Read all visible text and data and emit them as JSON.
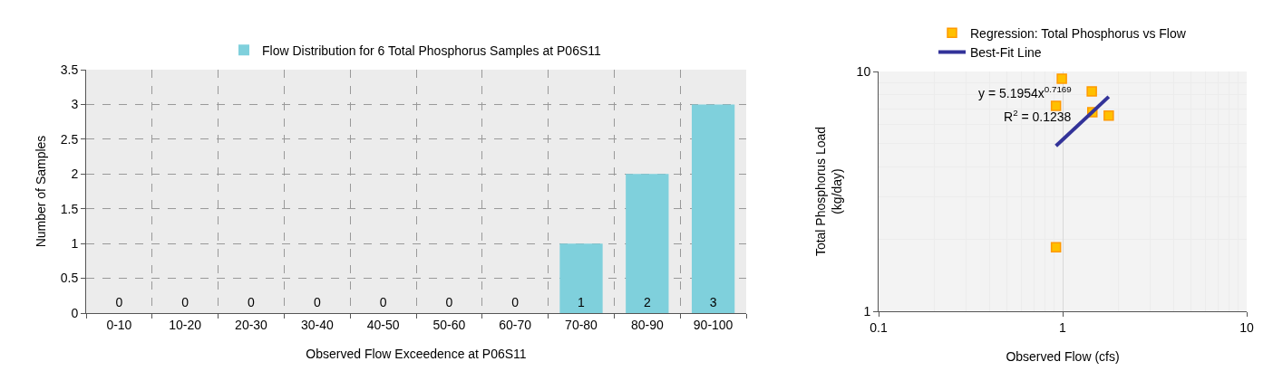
{
  "chart_data": [
    {
      "type": "bar",
      "categories": [
        "0-10",
        "10-20",
        "20-30",
        "30-40",
        "40-50",
        "50-60",
        "60-70",
        "70-80",
        "80-90",
        "90-100"
      ],
      "series": [
        {
          "name": "Flow Distribution for 6 Total Phosphorus Samples at P06S11",
          "color": "#7fd0dc",
          "values": [
            0,
            0,
            0,
            0,
            0,
            0,
            0,
            1,
            2,
            3
          ]
        }
      ],
      "xlabel": "Observed Flow Exceedence at P06S11",
      "ylabel": "Number of Samples",
      "ylim": [
        0,
        3.5
      ],
      "yticks": [
        0,
        0.5,
        1,
        1.5,
        2,
        2.5,
        3,
        3.5
      ],
      "grid": true,
      "legend": "top",
      "data_labels": true
    },
    {
      "type": "scatter",
      "log": "xy",
      "xlabel": "Observed Flow (cfs)",
      "ylabel": "Total Phosphorus Load\n(kg/day)",
      "xlim": [
        0.1,
        10
      ],
      "xticks": [
        0.1,
        1,
        10
      ],
      "ylim": [
        1,
        10
      ],
      "yticks": [
        1,
        10
      ],
      "grid": true,
      "legend": "top",
      "series": [
        {
          "name": "Regression: Total Phosphorus vs Flow",
          "color": "#ffc000",
          "marker": "square",
          "x": [
            0.99,
            1.44,
            0.92,
            1.45,
            1.78,
            0.92
          ],
          "values": [
            9.33,
            8.26,
            7.19,
            6.76,
            6.54,
            1.85
          ]
        },
        {
          "name": "Best-Fit Line",
          "type": "line",
          "color": "#333399",
          "marker": "none",
          "line_style": "solid",
          "x": [
            0.92,
            1.78
          ],
          "values": [
            4.89,
            7.85
          ]
        }
      ],
      "annotations": [
        "y = 5.1954x$^{0.7169}$",
        "R$^{2}$ = 0.1238"
      ]
    }
  ]
}
